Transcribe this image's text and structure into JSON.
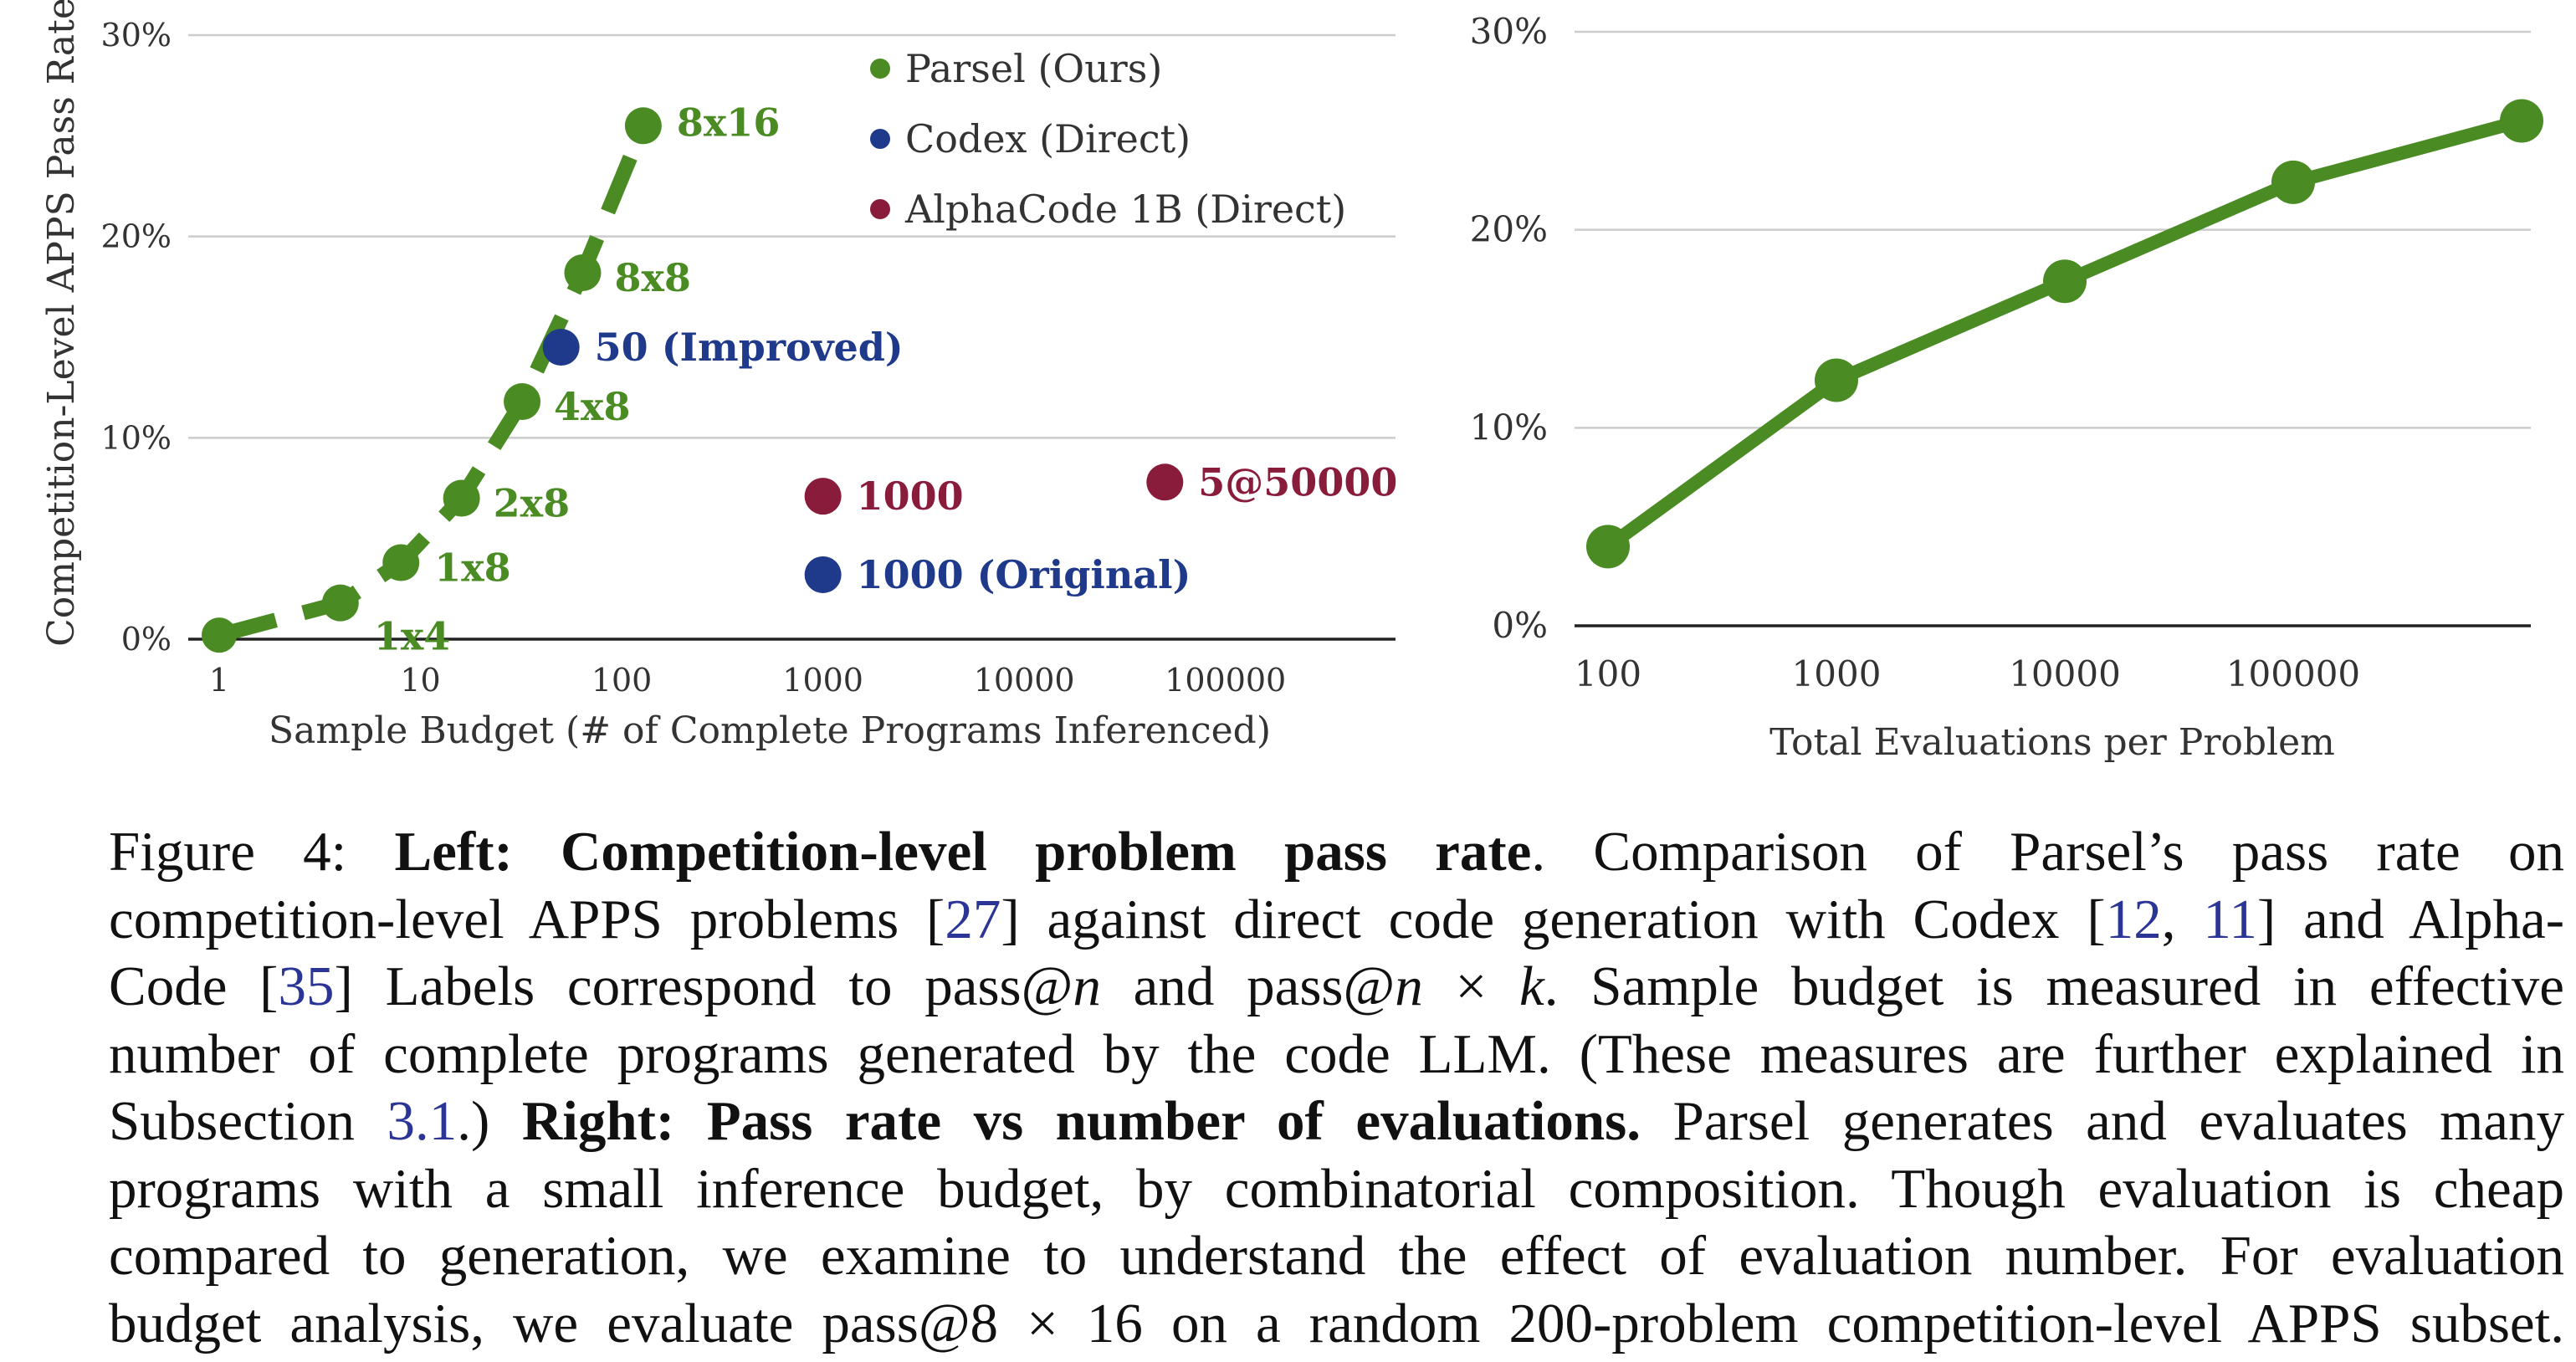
{
  "colors": {
    "parsel": "#4a8c23",
    "codex": "#1f3a8a",
    "alphacode": "#8a1c3b",
    "grid": "#cccccc",
    "axis": "#222222",
    "ref": "#2b3595"
  },
  "chart_data": [
    {
      "type": "scatter",
      "x_scale": "log",
      "xlabel": "Sample Budget (# of Complete Programs Inferenced)",
      "ylabel": "Competition-Level APPS Pass Rate",
      "xlim": [
        1,
        700000
      ],
      "ylim": [
        0,
        30
      ],
      "x_ticks": [
        {
          "value": 1,
          "label": "1"
        },
        {
          "value": 10,
          "label": "10"
        },
        {
          "value": 100,
          "label": "100"
        },
        {
          "value": 1000,
          "label": "1000"
        },
        {
          "value": 10000,
          "label": "10000"
        },
        {
          "value": 100000,
          "label": "100000"
        }
      ],
      "y_ticks": [
        {
          "value": 0,
          "label": "0%"
        },
        {
          "value": 10,
          "label": "10%"
        },
        {
          "value": 20,
          "label": "20%"
        },
        {
          "value": 30,
          "label": "30%"
        }
      ],
      "grid": true,
      "legend_position": "top-center",
      "legend": [
        {
          "name": "Parsel (Ours)",
          "color_key": "parsel"
        },
        {
          "name": "Codex (Direct)",
          "color_key": "codex"
        },
        {
          "name": "AlphaCode 1B (Direct)",
          "color_key": "alphacode"
        }
      ],
      "series": [
        {
          "name": "Parsel (Ours)",
          "color_key": "parsel",
          "line": "dashed",
          "points": [
            {
              "x": 1,
              "y": 0.2,
              "label": ""
            },
            {
              "x": 4,
              "y": 1.8,
              "label": "1x4"
            },
            {
              "x": 8,
              "y": 3.8,
              "label": "1x8"
            },
            {
              "x": 16,
              "y": 7.0,
              "label": "2x8"
            },
            {
              "x": 32,
              "y": 11.8,
              "label": "4x8"
            },
            {
              "x": 64,
              "y": 18.2,
              "label": "8x8"
            },
            {
              "x": 128,
              "y": 25.5,
              "label": "8x16"
            }
          ]
        },
        {
          "name": "Codex (Direct)",
          "color_key": "codex",
          "line": "none",
          "points": [
            {
              "x": 50,
              "y": 14.5,
              "label": "50 (Improved)"
            },
            {
              "x": 1000,
              "y": 3.2,
              "label": "1000 (Original)"
            }
          ]
        },
        {
          "name": "AlphaCode 1B (Direct)",
          "color_key": "alphacode",
          "line": "none",
          "points": [
            {
              "x": 1000,
              "y": 7.1,
              "label": "1000"
            },
            {
              "x": 50000,
              "y": 7.8,
              "label": "5@50000"
            }
          ]
        }
      ]
    },
    {
      "type": "line",
      "x_scale": "log",
      "xlabel": "Total Evaluations per Problem",
      "ylabel": "",
      "xlim": [
        100,
        1000000
      ],
      "ylim": [
        0,
        30
      ],
      "x_ticks": [
        {
          "value": 100,
          "label": "100"
        },
        {
          "value": 1000,
          "label": "1000"
        },
        {
          "value": 10000,
          "label": "10000"
        },
        {
          "value": 100000,
          "label": "100000"
        }
      ],
      "y_ticks": [
        {
          "value": 0,
          "label": "0%"
        },
        {
          "value": 10,
          "label": "10%"
        },
        {
          "value": 20,
          "label": "20%"
        },
        {
          "value": 30,
          "label": "30%"
        }
      ],
      "grid": true,
      "series": [
        {
          "color_key": "parsel",
          "x": [
            100,
            1000,
            10000,
            100000,
            1000000
          ],
          "values": [
            4.0,
            12.4,
            17.4,
            22.4,
            25.5
          ]
        }
      ]
    }
  ],
  "caption": {
    "lines": [
      [
        {
          "t": "Figure 4:   "
        },
        {
          "t": "Left: Competition-level problem pass rate",
          "b": true
        },
        {
          "t": ".  Comparison of Parsel’s pass rate on"
        }
      ],
      [
        {
          "t": "competition-level APPS problems ["
        },
        {
          "t": "27",
          "ref": true
        },
        {
          "t": "] against direct code generation with Codex ["
        },
        {
          "t": "12",
          "ref": true
        },
        {
          "t": ", "
        },
        {
          "t": "11",
          "ref": true
        },
        {
          "t": "] and Alpha-"
        }
      ],
      [
        {
          "t": "Code ["
        },
        {
          "t": "35",
          "ref": true
        },
        {
          "t": "] Labels correspond to pass@"
        },
        {
          "t": "n",
          "m": true
        },
        {
          "t": " and pass@"
        },
        {
          "t": "n",
          "m": true
        },
        {
          "t": " × "
        },
        {
          "t": "k",
          "m": true
        },
        {
          "t": ". Sample budget is measured in effective"
        }
      ],
      [
        {
          "t": "number of complete programs generated by the code LLM. (These measures are further explained in"
        }
      ],
      [
        {
          "t": "Subsection "
        },
        {
          "t": "3.1",
          "ref": true
        },
        {
          "t": ".) "
        },
        {
          "t": "Right: Pass rate vs number of evaluations.",
          "b": true
        },
        {
          "t": " Parsel generates and evaluates many"
        }
      ],
      [
        {
          "t": "programs with a small inference budget, by combinatorial composition. Though evaluation is cheap"
        }
      ],
      [
        {
          "t": "compared to generation, we examine to understand the effect of evaluation number. For evaluation"
        }
      ],
      [
        {
          "t": "budget analysis, we evaluate pass@8 × 16 on a random 200-problem competition-level APPS subset."
        }
      ]
    ]
  }
}
